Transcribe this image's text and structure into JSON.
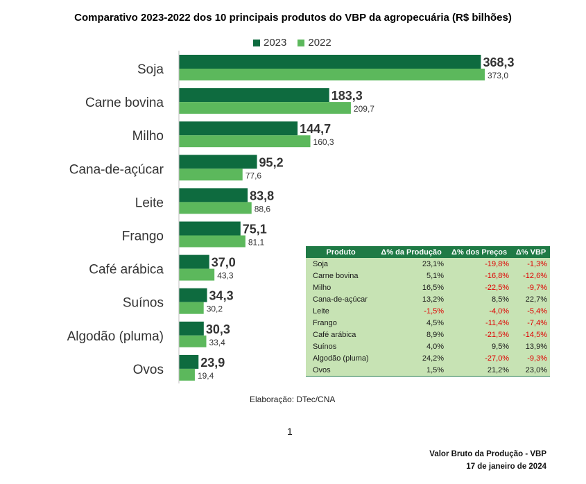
{
  "title": "Comparativo 2023-2022 dos 10 principais produtos do VBP da agropecuária (R$ bilhões)",
  "colors": {
    "y2023": "#0e6b3f",
    "y2022": "#5cb85c",
    "table_header": "#1f7a45",
    "table_body": "#c7e3b4",
    "negative": "#e00000"
  },
  "chart_data": {
    "type": "bar",
    "orientation": "horizontal",
    "title": "Comparativo 2023-2022 dos 10 principais produtos do VBP da agropecuária (R$ bilhões)",
    "categories": [
      "Soja",
      "Carne bovina",
      "Milho",
      "Cana-de-açúcar",
      "Leite",
      "Frango",
      "Café arábica",
      "Suínos",
      "Algodão (pluma)",
      "Ovos"
    ],
    "series": [
      {
        "name": "2023",
        "values": [
          368.3,
          183.3,
          144.7,
          95.2,
          83.8,
          75.1,
          37.0,
          34.3,
          30.3,
          23.9
        ],
        "labels": [
          "368,3",
          "183,3",
          "144,7",
          "95,2",
          "83,8",
          "75,1",
          "37,0",
          "34,3",
          "30,3",
          "23,9"
        ]
      },
      {
        "name": "2022",
        "values": [
          373.0,
          209.7,
          160.3,
          77.6,
          88.6,
          81.1,
          43.3,
          30.2,
          33.4,
          19.4
        ],
        "labels": [
          "373,0",
          "209,7",
          "160,3",
          "77,6",
          "88,6",
          "81,1",
          "43,3",
          "30,2",
          "33,4",
          "19,4"
        ]
      }
    ],
    "legend": [
      "2023",
      "2022"
    ],
    "legend_position": "top",
    "grid": false
  },
  "table": {
    "headers": [
      "Produto",
      "Δ% da Produção",
      "Δ% dos Preços",
      "Δ% VBP"
    ],
    "rows": [
      {
        "produto": "Soja",
        "producao": "23,1%",
        "precos": "-19,8%",
        "vbp": "-1,3%"
      },
      {
        "produto": "Carne bovina",
        "producao": "5,1%",
        "precos": "-16,8%",
        "vbp": "-12,6%"
      },
      {
        "produto": "Milho",
        "producao": "16,5%",
        "precos": "-22,5%",
        "vbp": "-9,7%"
      },
      {
        "produto": "Cana-de-açúcar",
        "producao": "13,2%",
        "precos": "8,5%",
        "vbp": "22,7%"
      },
      {
        "produto": "Leite",
        "producao": "-1,5%",
        "precos": "-4,0%",
        "vbp": "-5,4%"
      },
      {
        "produto": "Frango",
        "producao": "4,5%",
        "precos": "-11,4%",
        "vbp": "-7,4%"
      },
      {
        "produto": "Café arábica",
        "producao": "8,9%",
        "precos": "-21,5%",
        "vbp": "-14,5%"
      },
      {
        "produto": "Suínos",
        "producao": "4,0%",
        "precos": "9,5%",
        "vbp": "13,9%"
      },
      {
        "produto": "Algodão (pluma)",
        "producao": "24,2%",
        "precos": "-27,0%",
        "vbp": "-9,3%"
      },
      {
        "produto": "Ovos",
        "producao": "1,5%",
        "precos": "21,2%",
        "vbp": "23,0%"
      }
    ]
  },
  "source": "Elaboração: DTec/CNA",
  "page_number": "1",
  "footer": {
    "line1": "Valor Bruto da Produção - VBP",
    "line2": "17 de janeiro de 2024"
  }
}
